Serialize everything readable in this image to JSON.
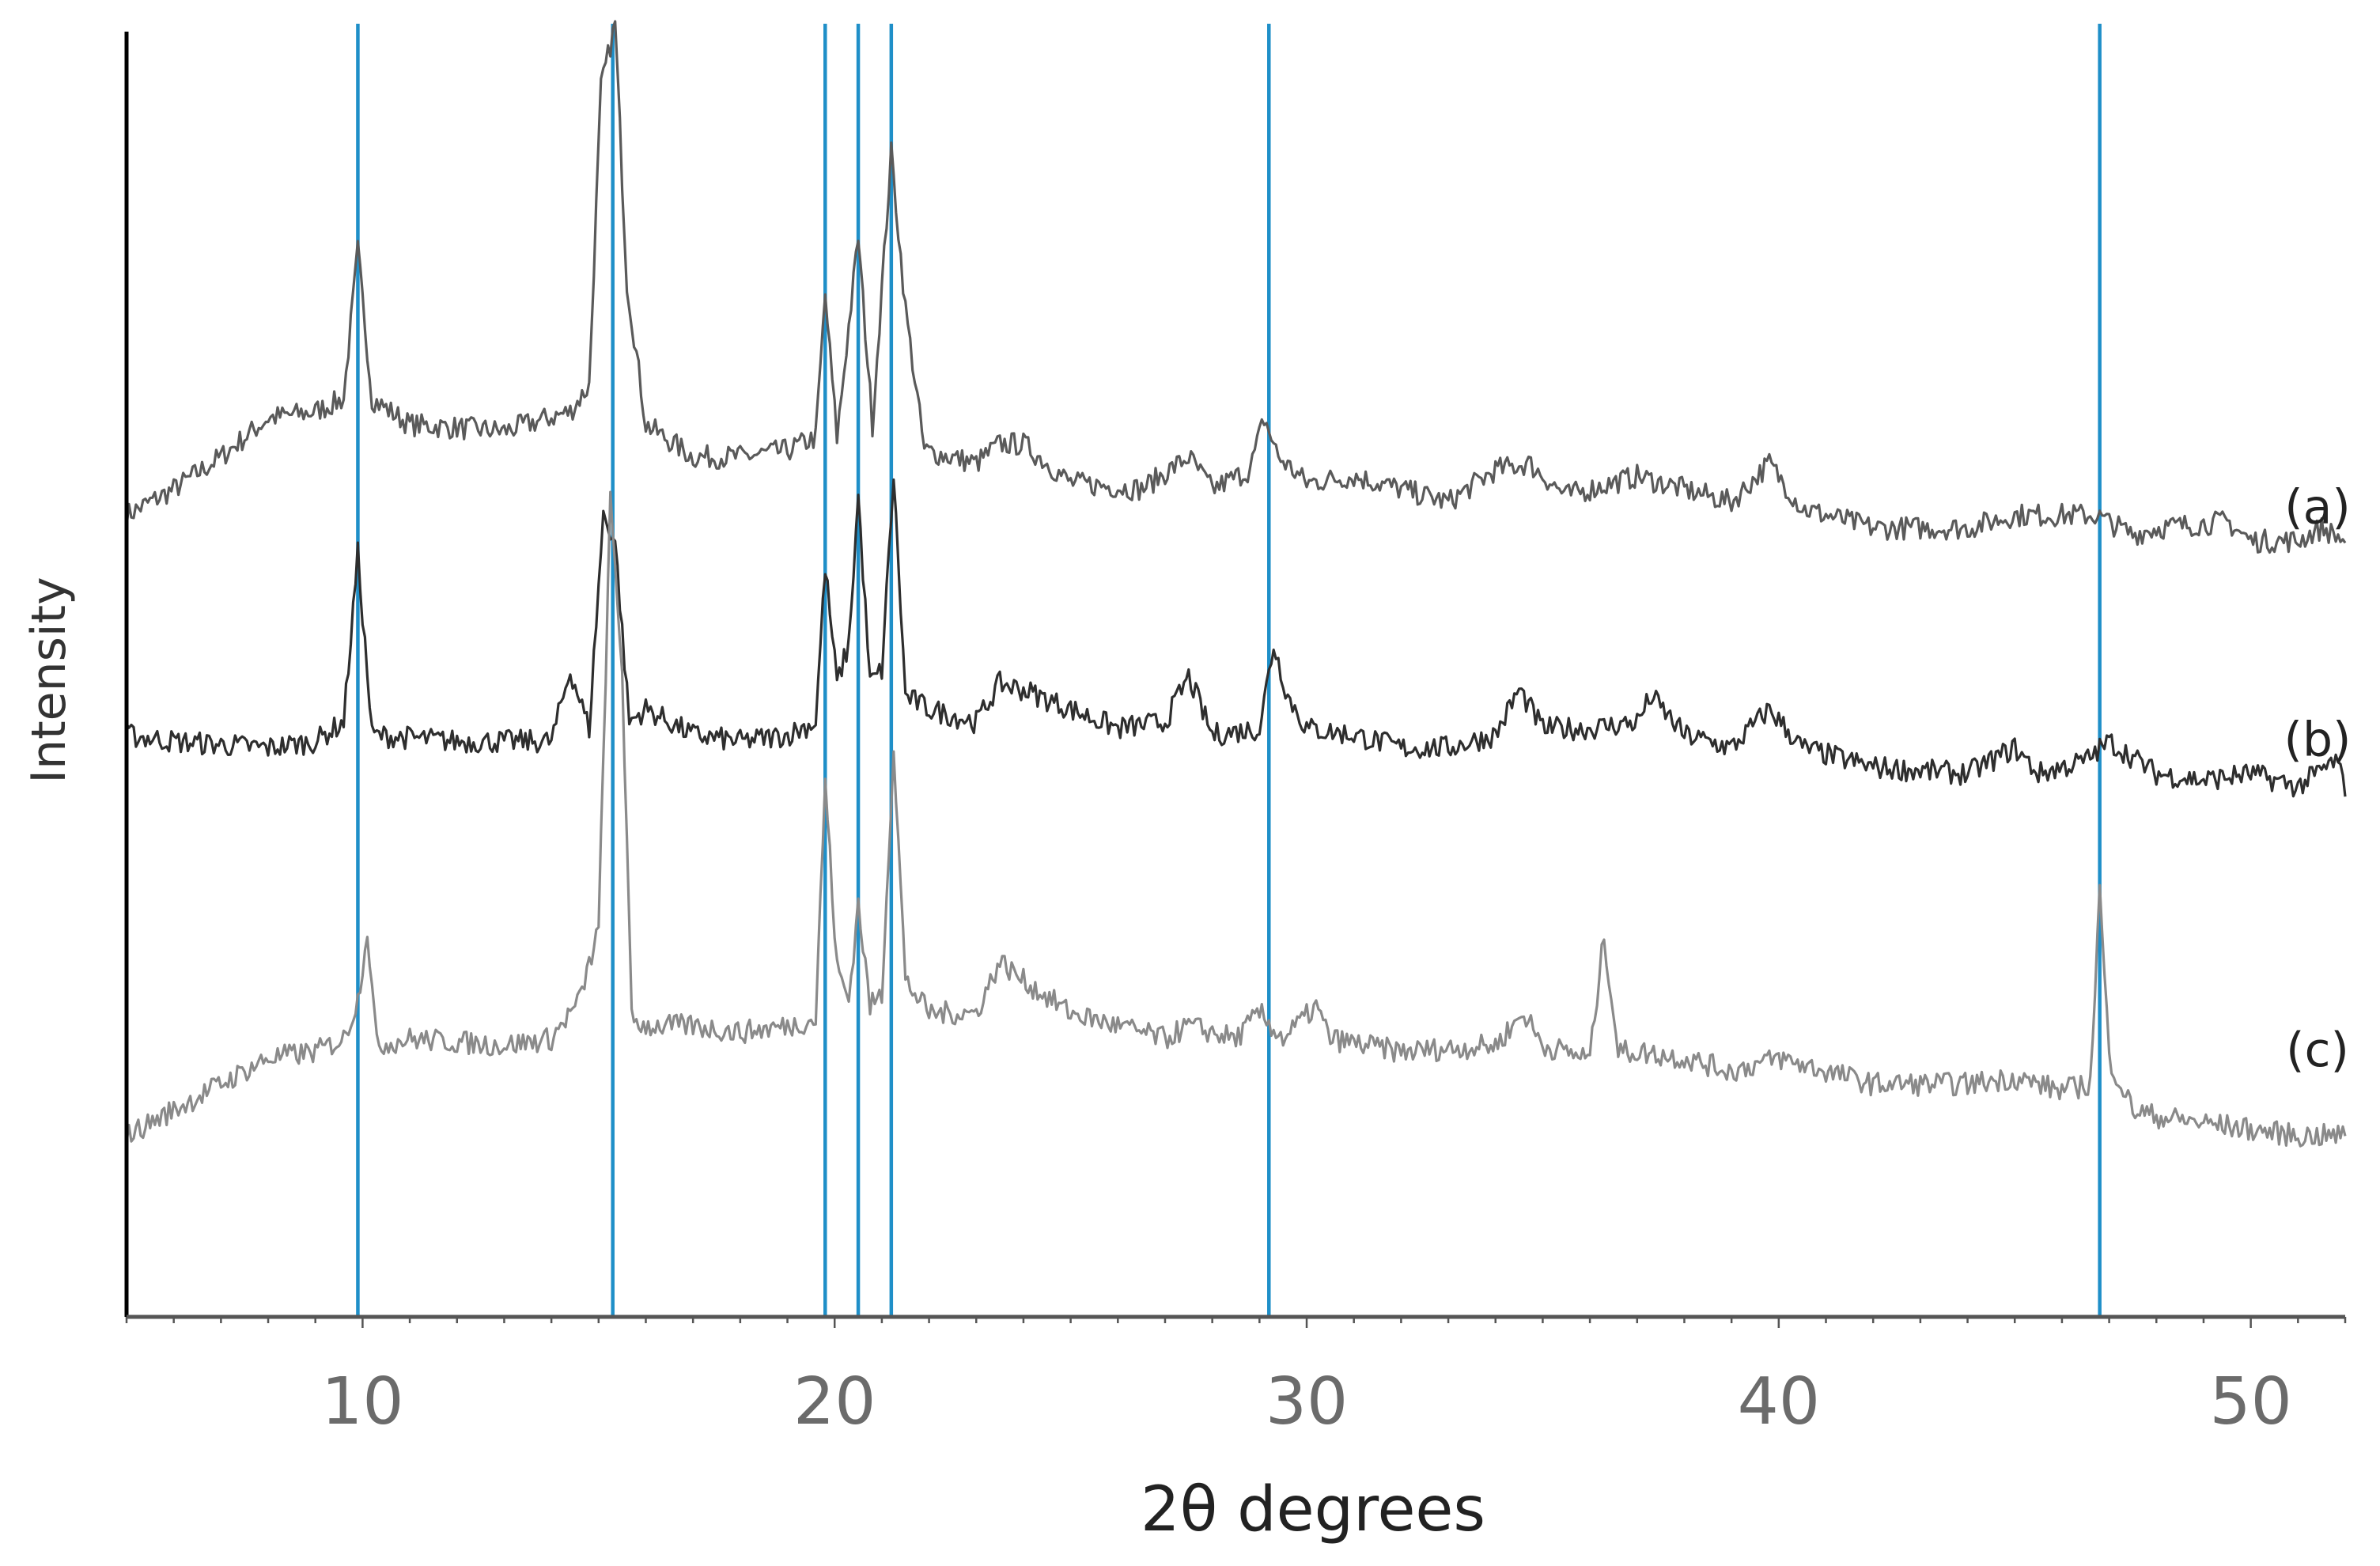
{
  "chart_data": {
    "type": "line",
    "title": "",
    "xlabel": "2θ degrees",
    "ylabel": "Intensity",
    "xlim": [
      5,
      52
    ],
    "ylim": [
      0,
      1
    ],
    "xticks": [
      10,
      20,
      30,
      40,
      50
    ],
    "xtick_labels": [
      "10",
      "20",
      "30",
      "40",
      "50"
    ],
    "yticks_shown": false,
    "grid": false,
    "legend": "none",
    "reference_line_color": "#1f8fc8",
    "reference_lines_x": [
      9.9,
      15.3,
      19.8,
      20.5,
      21.2,
      29.2,
      46.8
    ],
    "series": [
      {
        "label": "(a)",
        "color": "#5a5a5a",
        "baseline": 0.62,
        "points": [
          [
            5,
            0.62
          ],
          [
            6,
            0.64
          ],
          [
            7,
            0.665
          ],
          [
            8,
            0.695
          ],
          [
            9,
            0.7
          ],
          [
            9.6,
            0.71
          ],
          [
            9.9,
            0.825
          ],
          [
            10.2,
            0.71
          ],
          [
            11,
            0.69
          ],
          [
            13,
            0.685
          ],
          [
            14.4,
            0.7
          ],
          [
            14.8,
            0.72
          ],
          [
            15.05,
            0.95
          ],
          [
            15.35,
            1.0
          ],
          [
            15.6,
            0.8
          ],
          [
            16,
            0.69
          ],
          [
            17,
            0.665
          ],
          [
            18,
            0.665
          ],
          [
            19,
            0.67
          ],
          [
            19.6,
            0.68
          ],
          [
            19.8,
            0.79
          ],
          [
            20.05,
            0.68
          ],
          [
            20.5,
            0.835
          ],
          [
            20.8,
            0.69
          ],
          [
            21.2,
            0.9
          ],
          [
            21.5,
            0.78
          ],
          [
            21.9,
            0.67
          ],
          [
            23,
            0.66
          ],
          [
            23.5,
            0.675
          ],
          [
            24,
            0.675
          ],
          [
            25,
            0.645
          ],
          [
            26.5,
            0.64
          ],
          [
            27.5,
            0.665
          ],
          [
            28,
            0.64
          ],
          [
            28.8,
            0.655
          ],
          [
            29.1,
            0.695
          ],
          [
            29.4,
            0.665
          ],
          [
            30,
            0.645
          ],
          [
            31,
            0.65
          ],
          [
            33,
            0.63
          ],
          [
            34,
            0.655
          ],
          [
            34.7,
            0.66
          ],
          [
            35.5,
            0.635
          ],
          [
            37,
            0.65
          ],
          [
            38,
            0.64
          ],
          [
            39,
            0.63
          ],
          [
            39.8,
            0.66
          ],
          [
            40.5,
            0.625
          ],
          [
            42,
            0.61
          ],
          [
            44,
            0.61
          ],
          [
            45,
            0.62
          ],
          [
            46,
            0.62
          ],
          [
            46.7,
            0.62
          ],
          [
            47.5,
            0.605
          ],
          [
            48,
            0.61
          ],
          [
            49.5,
            0.615
          ],
          [
            50,
            0.6
          ],
          [
            51,
            0.6
          ],
          [
            51.5,
            0.61
          ],
          [
            52,
            0.6
          ]
        ]
      },
      {
        "label": "(b)",
        "color": "#2e2e2e",
        "baseline": 0.44,
        "points": [
          [
            5,
            0.45
          ],
          [
            6,
            0.445
          ],
          [
            8,
            0.44
          ],
          [
            9,
            0.445
          ],
          [
            9.6,
            0.46
          ],
          [
            9.9,
            0.59
          ],
          [
            10.2,
            0.45
          ],
          [
            12,
            0.445
          ],
          [
            14,
            0.445
          ],
          [
            14.4,
            0.5
          ],
          [
            14.8,
            0.455
          ],
          [
            15.1,
            0.62
          ],
          [
            15.35,
            0.6
          ],
          [
            15.65,
            0.46
          ],
          [
            16,
            0.47
          ],
          [
            17,
            0.45
          ],
          [
            18,
            0.445
          ],
          [
            19,
            0.45
          ],
          [
            19.6,
            0.46
          ],
          [
            19.8,
            0.58
          ],
          [
            20.05,
            0.49
          ],
          [
            20.3,
            0.52
          ],
          [
            20.5,
            0.635
          ],
          [
            20.75,
            0.49
          ],
          [
            21.0,
            0.5
          ],
          [
            21.25,
            0.65
          ],
          [
            21.5,
            0.48
          ],
          [
            22,
            0.47
          ],
          [
            23,
            0.46
          ],
          [
            23.5,
            0.49
          ],
          [
            24,
            0.485
          ],
          [
            25,
            0.47
          ],
          [
            26,
            0.455
          ],
          [
            27,
            0.46
          ],
          [
            27.5,
            0.495
          ],
          [
            28,
            0.45
          ],
          [
            29,
            0.455
          ],
          [
            29.3,
            0.52
          ],
          [
            29.6,
            0.48
          ],
          [
            30,
            0.455
          ],
          [
            31,
            0.45
          ],
          [
            32,
            0.44
          ],
          [
            33,
            0.44
          ],
          [
            34,
            0.45
          ],
          [
            34.5,
            0.485
          ],
          [
            35,
            0.455
          ],
          [
            36,
            0.455
          ],
          [
            37,
            0.46
          ],
          [
            37.3,
            0.48
          ],
          [
            38,
            0.45
          ],
          [
            39,
            0.44
          ],
          [
            39.8,
            0.47
          ],
          [
            40.5,
            0.44
          ],
          [
            42,
            0.425
          ],
          [
            44,
            0.42
          ],
          [
            45,
            0.44
          ],
          [
            45.5,
            0.42
          ],
          [
            46.5,
            0.43
          ],
          [
            47,
            0.445
          ],
          [
            48,
            0.42
          ],
          [
            49,
            0.415
          ],
          [
            50,
            0.42
          ],
          [
            51,
            0.41
          ],
          [
            51.8,
            0.43
          ],
          [
            52,
            0.41
          ]
        ]
      },
      {
        "label": "(c)",
        "color": "#8a8a8a",
        "baseline": 0.2,
        "points": [
          [
            5,
            0.14
          ],
          [
            6,
            0.16
          ],
          [
            7,
            0.18
          ],
          [
            8,
            0.2
          ],
          [
            9,
            0.205
          ],
          [
            9.6,
            0.215
          ],
          [
            9.9,
            0.245
          ],
          [
            10.1,
            0.3
          ],
          [
            10.3,
            0.21
          ],
          [
            11,
            0.215
          ],
          [
            13,
            0.21
          ],
          [
            14,
            0.215
          ],
          [
            14.6,
            0.245
          ],
          [
            15.0,
            0.3
          ],
          [
            15.25,
            0.63
          ],
          [
            15.5,
            0.5
          ],
          [
            15.7,
            0.23
          ],
          [
            16,
            0.225
          ],
          [
            17,
            0.225
          ],
          [
            18,
            0.22
          ],
          [
            19,
            0.225
          ],
          [
            19.6,
            0.23
          ],
          [
            19.8,
            0.415
          ],
          [
            20.05,
            0.27
          ],
          [
            20.3,
            0.245
          ],
          [
            20.5,
            0.32
          ],
          [
            20.75,
            0.24
          ],
          [
            21.0,
            0.25
          ],
          [
            21.25,
            0.44
          ],
          [
            21.5,
            0.26
          ],
          [
            22,
            0.235
          ],
          [
            23,
            0.235
          ],
          [
            23.5,
            0.275
          ],
          [
            24,
            0.26
          ],
          [
            25,
            0.235
          ],
          [
            26,
            0.225
          ],
          [
            27,
            0.215
          ],
          [
            27.5,
            0.225
          ],
          [
            28.5,
            0.215
          ],
          [
            29,
            0.235
          ],
          [
            29.5,
            0.215
          ],
          [
            30.2,
            0.24
          ],
          [
            30.5,
            0.215
          ],
          [
            32,
            0.205
          ],
          [
            34,
            0.21
          ],
          [
            34.6,
            0.235
          ],
          [
            35,
            0.21
          ],
          [
            36,
            0.2
          ],
          [
            36.3,
            0.295
          ],
          [
            36.6,
            0.205
          ],
          [
            37,
            0.205
          ],
          [
            38,
            0.2
          ],
          [
            39,
            0.19
          ],
          [
            40,
            0.2
          ],
          [
            41,
            0.19
          ],
          [
            42,
            0.18
          ],
          [
            44,
            0.18
          ],
          [
            45,
            0.185
          ],
          [
            46,
            0.175
          ],
          [
            46.6,
            0.18
          ],
          [
            46.8,
            0.33
          ],
          [
            47.0,
            0.2
          ],
          [
            47.5,
            0.16
          ],
          [
            48,
            0.155
          ],
          [
            49,
            0.15
          ],
          [
            50,
            0.145
          ],
          [
            51,
            0.14
          ],
          [
            52,
            0.14
          ]
        ]
      }
    ]
  }
}
